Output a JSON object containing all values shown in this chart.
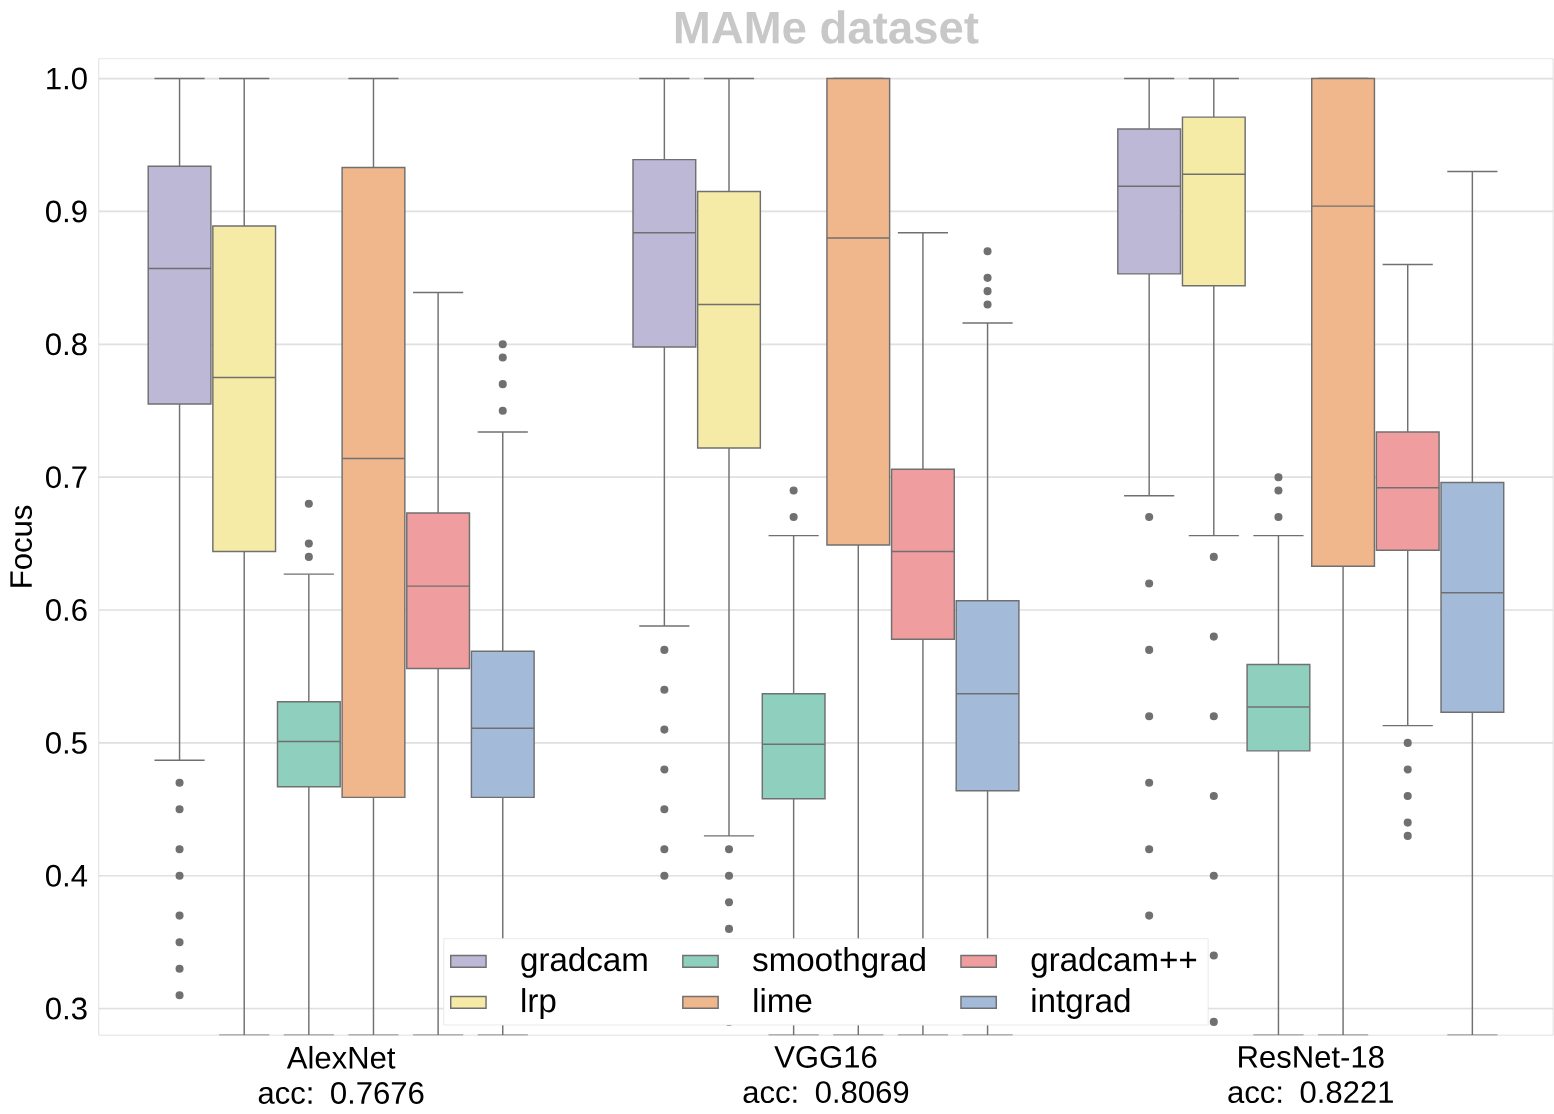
{
  "chart_data": {
    "type": "box",
    "title": "MAMe dataset",
    "ylabel": "Focus",
    "categories": [
      "AlexNet acc: 0.7676",
      "VGG16 acc: 0.8069",
      "ResNet-18 acc: 0.8221"
    ],
    "ylim": [
      0.28,
      1.015
    ],
    "yticks": [
      0.3,
      0.4,
      0.5,
      0.6,
      0.7,
      0.8,
      0.9,
      {
        "value": 1.0,
        "label": "1.0"
      }
    ],
    "grid": "y",
    "legend": "bottom",
    "series": [
      {
        "name": "gradcam",
        "color": "#bcb8d6",
        "boxes": [
          {
            "low": 0.487,
            "q1": 0.755,
            "median": 0.857,
            "q3": 0.934,
            "high": 1.0,
            "outliers": [
              0.47,
              0.45,
              0.42,
              0.4,
              0.37,
              0.35,
              0.33,
              0.31
            ]
          },
          {
            "low": 0.588,
            "q1": 0.798,
            "median": 0.884,
            "q3": 0.939,
            "high": 1.0,
            "outliers": [
              0.57,
              0.54,
              0.51,
              0.48,
              0.45,
              0.42,
              0.4
            ]
          },
          {
            "low": 0.686,
            "q1": 0.853,
            "median": 0.919,
            "q3": 0.962,
            "high": 1.0,
            "outliers": [
              0.67,
              0.62,
              0.57,
              0.52,
              0.47,
              0.42,
              0.37
            ]
          }
        ]
      },
      {
        "name": "lrp",
        "color": "#f6eaa7",
        "boxes": [
          {
            "low": 0.28,
            "q1": 0.644,
            "median": 0.775,
            "q3": 0.889,
            "high": 1.0
          },
          {
            "low": 0.43,
            "q1": 0.722,
            "median": 0.83,
            "q3": 0.915,
            "high": 1.0,
            "outliers": [
              0.42,
              0.4,
              0.38,
              0.36,
              0.29
            ]
          },
          {
            "low": 0.656,
            "q1": 0.844,
            "median": 0.928,
            "q3": 0.971,
            "high": 1.0,
            "outliers": [
              0.64,
              0.58,
              0.52,
              0.46,
              0.4,
              0.34,
              0.29
            ]
          }
        ]
      },
      {
        "name": "smoothgrad",
        "color": "#8ecfbd",
        "boxes": [
          {
            "low": 0.28,
            "q1": 0.467,
            "median": 0.501,
            "q3": 0.531,
            "high": 0.627,
            "outliers": [
              0.64,
              0.65,
              0.68
            ]
          },
          {
            "low": 0.28,
            "q1": 0.458,
            "median": 0.499,
            "q3": 0.537,
            "high": 0.656,
            "outliers": [
              0.67,
              0.69
            ]
          },
          {
            "low": 0.28,
            "q1": 0.494,
            "median": 0.527,
            "q3": 0.559,
            "high": 0.656,
            "outliers": [
              0.67,
              0.69,
              0.7
            ]
          }
        ]
      },
      {
        "name": "lime",
        "color": "#f0b68c",
        "boxes": [
          {
            "low": 0.28,
            "q1": 0.459,
            "median": 0.714,
            "q3": 0.933,
            "high": 1.0
          },
          {
            "low": 0.28,
            "q1": 0.649,
            "median": 0.88,
            "q3": 1.0,
            "high": 1.0
          },
          {
            "low": 0.28,
            "q1": 0.633,
            "median": 0.904,
            "q3": 1.0,
            "high": 1.0
          }
        ]
      },
      {
        "name": "gradcam++",
        "color": "#ef9d9f",
        "boxes": [
          {
            "low": 0.28,
            "q1": 0.556,
            "median": 0.618,
            "q3": 0.673,
            "high": 0.839
          },
          {
            "low": 0.28,
            "q1": 0.578,
            "median": 0.644,
            "q3": 0.706,
            "high": 0.884
          },
          {
            "low": 0.513,
            "q1": 0.645,
            "median": 0.692,
            "q3": 0.734,
            "high": 0.86,
            "outliers": [
              0.5,
              0.48,
              0.46,
              0.44,
              0.43
            ]
          }
        ]
      },
      {
        "name": "intgrad",
        "color": "#a3bad8",
        "boxes": [
          {
            "low": 0.28,
            "q1": 0.459,
            "median": 0.511,
            "q3": 0.569,
            "high": 0.734,
            "outliers": [
              0.75,
              0.77,
              0.79,
              0.8
            ]
          },
          {
            "low": 0.28,
            "q1": 0.464,
            "median": 0.537,
            "q3": 0.607,
            "high": 0.816,
            "outliers": [
              0.83,
              0.84,
              0.85,
              0.87
            ]
          },
          {
            "low": 0.28,
            "q1": 0.523,
            "median": 0.613,
            "q3": 0.696,
            "high": 0.93
          }
        ]
      }
    ]
  }
}
